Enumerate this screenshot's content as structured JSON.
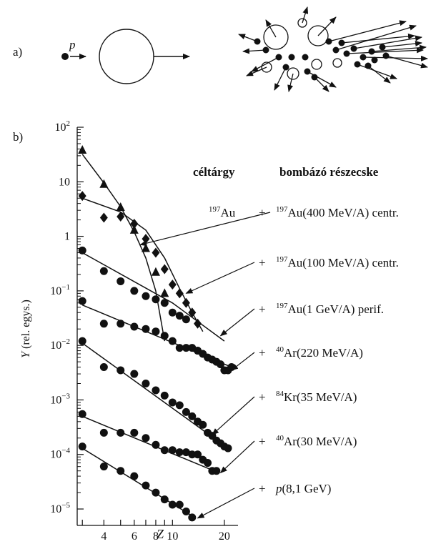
{
  "panel_a": {
    "label": "a)",
    "projectile_label": "p"
  },
  "chart_data": {
    "type": "scatter",
    "panel_label": "b)",
    "xlabel": "Z",
    "ylabel": "Y (rel. egys.)",
    "x_scale": "log",
    "y_scale": "log",
    "xlim": [
      2.8,
      24
    ],
    "ylim": [
      5e-06,
      100
    ],
    "x_ticks": [
      3,
      4,
      5,
      6,
      7,
      8,
      9,
      10,
      20
    ],
    "x_tick_labels": [
      {
        "value": 4,
        "label": "4"
      },
      {
        "value": 6,
        "label": "6"
      },
      {
        "value": 8,
        "label": "8"
      },
      {
        "value": 10,
        "label": "10"
      },
      {
        "value": 20,
        "label": "20"
      }
    ],
    "y_tick_labels": [
      {
        "value": 100,
        "base": "10",
        "exp": "2"
      },
      {
        "value": 10,
        "base": "10",
        "exp": ""
      },
      {
        "value": 1,
        "base": "1",
        "exp": ""
      },
      {
        "value": 0.1,
        "base": "10",
        "exp": "−1"
      },
      {
        "value": 0.01,
        "base": "10",
        "exp": "−2"
      },
      {
        "value": 0.001,
        "base": "10",
        "exp": "−3"
      },
      {
        "value": 0.0001,
        "base": "10",
        "exp": "−4"
      },
      {
        "value": 1e-05,
        "base": "10",
        "exp": "−5"
      }
    ],
    "header_target": "céltárgy",
    "header_projectile": "bombázó részecske",
    "target": {
      "mass": "197",
      "symbol": "Au",
      "plus": "+"
    },
    "series": [
      {
        "name": "197Au(400 MeV/A) centr.",
        "iso": "197",
        "rest": "Au(400 MeV/A) centr.",
        "marker": "diamond",
        "x": [
          3,
          4,
          5,
          6,
          7,
          8,
          9,
          10,
          11,
          12,
          13,
          14
        ],
        "y": [
          5.5,
          2.2,
          2.3,
          1.7,
          0.9,
          0.5,
          0.25,
          0.13,
          0.09,
          0.06,
          0.04,
          0.025
        ],
        "fit_x": [
          3,
          5,
          7,
          9,
          11,
          13,
          15
        ],
        "fit_y": [
          5,
          2.8,
          1.3,
          0.4,
          0.11,
          0.04,
          0.018
        ]
      },
      {
        "name": "197Au(100 MeV/A) centr.",
        "iso": "197",
        "rest": "Au(100 MeV/A) centr.",
        "marker": "triangle",
        "x": [
          3,
          4,
          5,
          6,
          7,
          8,
          9
        ],
        "y": [
          38,
          9,
          3.4,
          1.3,
          0.6,
          0.22,
          0.09
        ],
        "fit_x": [
          3,
          4,
          5,
          6,
          7,
          8,
          9
        ],
        "fit_y": [
          32,
          9.5,
          3.5,
          1.2,
          0.4,
          0.1,
          0.012
        ]
      },
      {
        "name": "197Au(1 GeV/A) perif.",
        "iso": "197",
        "rest": "Au(1 GeV/A) perif.",
        "marker": "circle",
        "x": [
          3,
          4,
          5,
          6,
          7,
          8,
          9,
          10,
          11,
          12
        ],
        "y": [
          0.55,
          0.23,
          0.15,
          0.1,
          0.08,
          0.07,
          0.06,
          0.04,
          0.035,
          0.03
        ],
        "fit_x": [
          3,
          10,
          20
        ],
        "fit_y": [
          0.5,
          0.06,
          0.012
        ]
      },
      {
        "name": "40Ar(220 MeV/A)",
        "iso": "40",
        "rest": "Ar(220 MeV/A)",
        "marker": "circle",
        "x": [
          3,
          4,
          5,
          6,
          7,
          8,
          9,
          10,
          11,
          12,
          13,
          14,
          15,
          16,
          17,
          18,
          19,
          20,
          21,
          22
        ],
        "y": [
          0.065,
          0.025,
          0.025,
          0.022,
          0.02,
          0.018,
          0.015,
          0.012,
          0.009,
          0.009,
          0.009,
          0.008,
          0.007,
          0.006,
          0.0055,
          0.005,
          0.0045,
          0.0035,
          0.0035,
          0.004
        ],
        "fit_x": [
          3,
          22
        ],
        "fit_y": [
          0.055,
          0.004
        ]
      },
      {
        "name": "84Kr(35 MeV/A)",
        "iso": "84",
        "rest": "Kr(35 MeV/A)",
        "marker": "circle",
        "x": [
          3,
          4,
          5,
          6,
          7,
          8,
          9,
          10,
          11,
          12,
          13,
          14,
          15,
          16,
          17,
          18,
          19,
          20,
          21
        ],
        "y": [
          0.012,
          0.004,
          0.0035,
          0.003,
          0.002,
          0.0015,
          0.0012,
          0.0009,
          0.0008,
          0.0006,
          0.0005,
          0.0004,
          0.00035,
          0.00025,
          0.00022,
          0.00018,
          0.00016,
          0.00014,
          0.00013
        ],
        "fit_x": [
          3,
          21
        ],
        "fit_y": [
          0.011,
          0.00013
        ]
      },
      {
        "name": "40Ar(30 MeV/A)",
        "iso": "40",
        "rest": "Ar(30 MeV/A)",
        "marker": "circle",
        "x": [
          3,
          4,
          5,
          6,
          7,
          8,
          9,
          10,
          11,
          12,
          13,
          14,
          15,
          16,
          17,
          18
        ],
        "y": [
          0.00055,
          0.00025,
          0.00025,
          0.00025,
          0.0002,
          0.00015,
          0.00012,
          0.00012,
          0.00011,
          0.00011,
          0.0001,
          0.0001,
          8e-05,
          7e-05,
          5e-05,
          5e-05
        ],
        "fit_x": [
          3,
          18
        ],
        "fit_y": [
          0.0005,
          4.8e-05
        ]
      },
      {
        "name": "p(8,1 GeV)",
        "iso": "",
        "rest": "p(8,1 GeV)",
        "marker": "circle",
        "x": [
          3,
          4,
          5,
          6,
          7,
          8,
          9,
          10,
          11,
          12,
          13
        ],
        "y": [
          0.00014,
          6e-05,
          5e-05,
          4e-05,
          2.7e-05,
          2e-05,
          1.5e-05,
          1.2e-05,
          1.2e-05,
          9e-06,
          7e-06
        ],
        "fit_x": [
          3,
          13
        ],
        "fit_y": [
          0.00013,
          7.5e-06
        ]
      }
    ],
    "legend_rows": [
      {
        "iso": "197",
        "rest": "Au(400 MeV/A) centr.",
        "label_y": 297,
        "arrow_to": {
          "x": 6.5,
          "y": 0.7
        }
      },
      {
        "iso": "197",
        "rest": "Au(100 MeV/A) centr.",
        "label_y": 367,
        "arrow_to": {
          "x": 12,
          "y": 0.09
        }
      },
      {
        "iso": "197",
        "rest": "Au(1 GeV/A) perif.",
        "label_y": 432,
        "arrow_to": {
          "x": 19,
          "y": 0.015
        }
      },
      {
        "iso": "40",
        "rest": "Ar(220 MeV/A)",
        "label_y": 493,
        "arrow_to": {
          "x": 22,
          "y": 0.0035
        }
      },
      {
        "iso": "84",
        "rest": "Kr(35 MeV/A)",
        "label_y": 555,
        "arrow_to": {
          "x": 17,
          "y": 0.00023
        }
      },
      {
        "iso": "40",
        "rest": "Ar(30 MeV/A)",
        "label_y": 617,
        "arrow_to": {
          "x": 19,
          "y": 4.6e-05
        }
      },
      {
        "iso": "",
        "rest": "p(8,1 GeV)",
        "label_y": 683,
        "arrow_to": {
          "x": 14,
          "y": 6.8e-06
        }
      }
    ]
  }
}
